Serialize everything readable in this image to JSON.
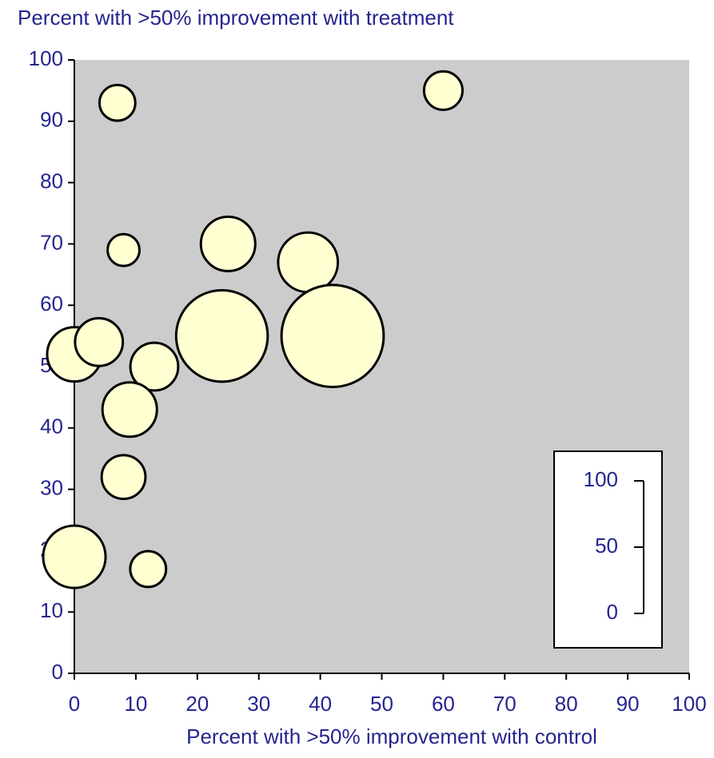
{
  "chart_data": {
    "type": "bubble",
    "title": "Percent with >50% improvement with treatment",
    "x_label": "Percent with >50% improvement with control",
    "x": [
      60,
      7,
      8,
      25,
      38,
      24,
      42,
      0,
      4,
      13,
      9,
      8,
      0,
      12
    ],
    "y": [
      95,
      93,
      69,
      70,
      67,
      55,
      55,
      52,
      54,
      50,
      43,
      32,
      19,
      17
    ],
    "size": [
      29,
      27,
      24,
      41,
      45,
      69,
      77,
      41,
      36,
      36,
      41,
      33,
      47,
      27
    ],
    "color": "#ffffd2",
    "xlim": [
      0,
      100
    ],
    "xticks": [
      0,
      10,
      20,
      30,
      40,
      50,
      60,
      70,
      80,
      90,
      100
    ],
    "ylim": [
      0,
      100
    ],
    "yticks": [
      0,
      10,
      20,
      30,
      40,
      50,
      60,
      70,
      80,
      90,
      100
    ],
    "size_ticks": [
      0,
      50,
      100
    ],
    "legend": "lower right"
  }
}
